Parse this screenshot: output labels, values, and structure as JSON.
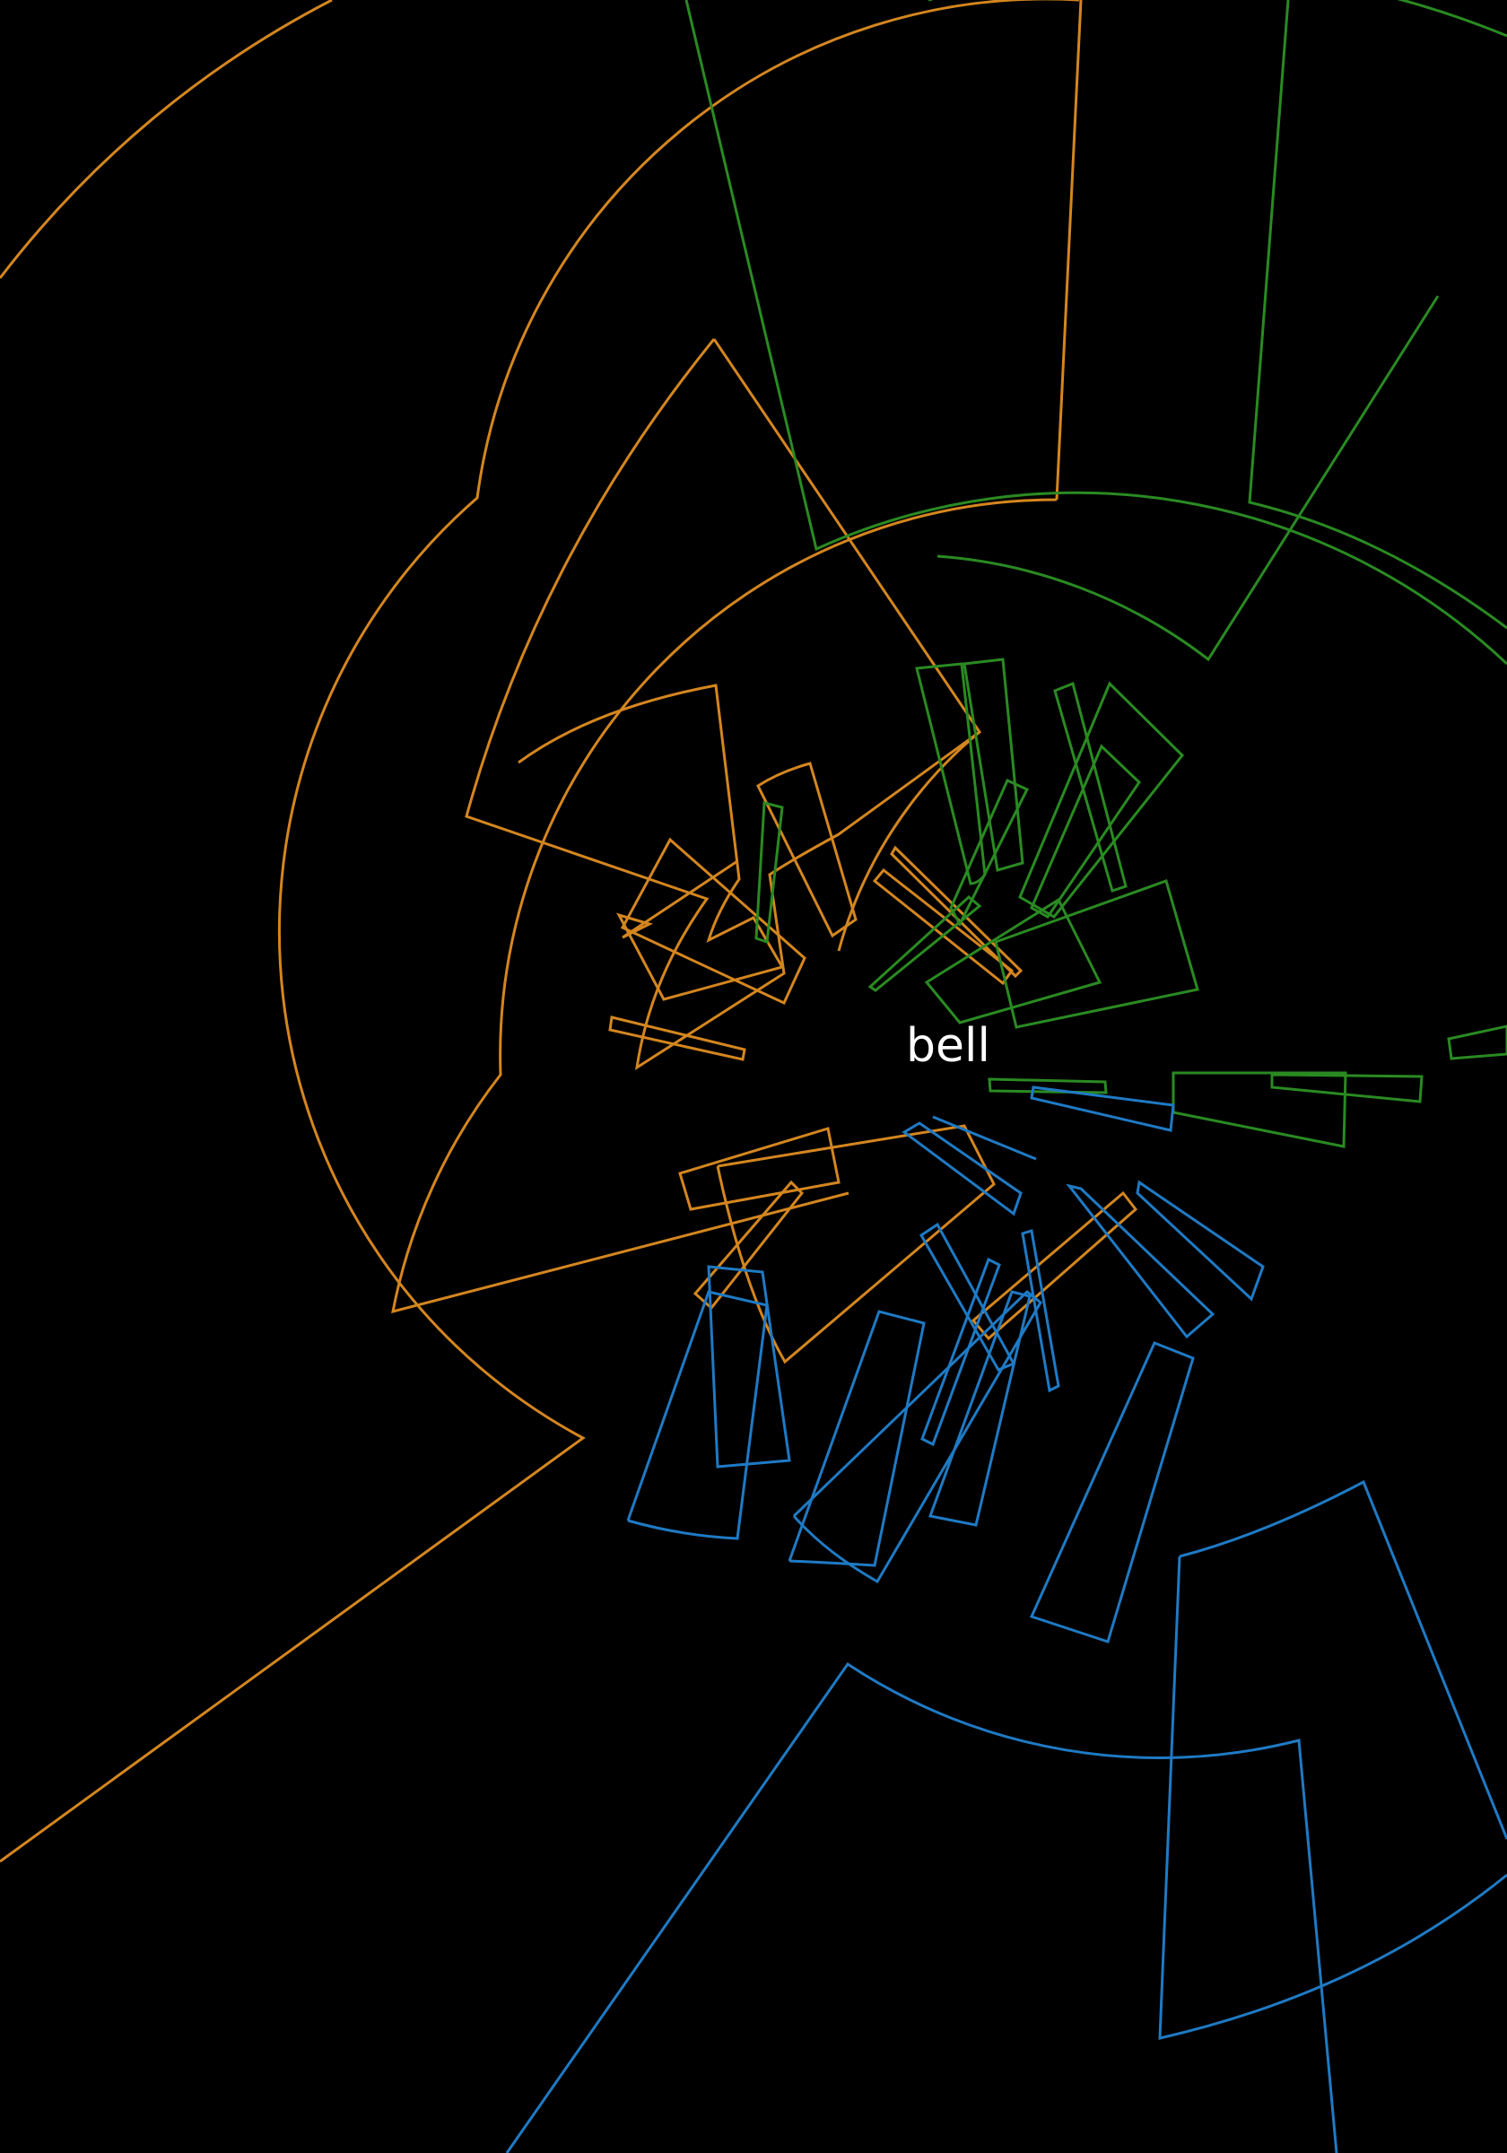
{
  "center_label": "bell",
  "colors": {
    "background": "#000000",
    "label": "#ffffff",
    "orange_group": "#d4861f",
    "green_group": "#2a8a22",
    "blue_group": "#1f7ac4"
  },
  "groups": [
    "orange_group",
    "green_group",
    "blue_group"
  ]
}
